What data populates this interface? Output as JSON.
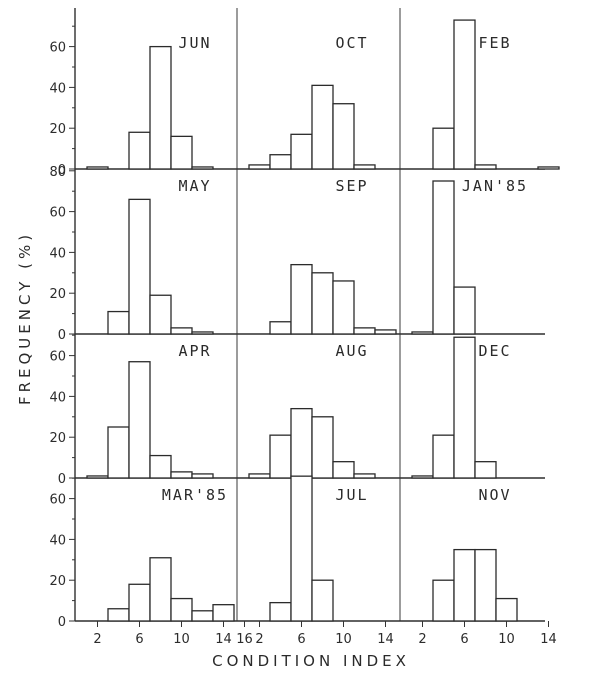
{
  "chart_data": {
    "type": "bar",
    "xlabel": "CONDITION INDEX",
    "ylabel": "FREQUENCY (%)",
    "ylim": [
      0,
      90
    ],
    "y_ticks": [
      0,
      20,
      40,
      60,
      80
    ],
    "grid": false,
    "panels": [
      {
        "label": "JUN",
        "x_tick_labels": [],
        "bins": [
          2,
          4,
          6,
          8,
          10,
          12,
          14,
          16
        ],
        "values": [
          1,
          0,
          18,
          60,
          16,
          1,
          0,
          0
        ]
      },
      {
        "label": "OCT",
        "x_tick_labels": [],
        "bins": [
          2,
          4,
          6,
          8,
          10,
          12,
          14,
          16
        ],
        "values": [
          2,
          7,
          17,
          41,
          32,
          2,
          0,
          0
        ]
      },
      {
        "label": "FEB",
        "x_tick_labels": [],
        "bins": [
          2,
          4,
          6,
          8,
          10,
          12,
          14,
          16
        ],
        "values": [
          0,
          20,
          73,
          2,
          0,
          0,
          1,
          0
        ]
      },
      {
        "label": "MAY",
        "x_tick_labels": [],
        "bins": [
          2,
          4,
          6,
          8,
          10,
          12,
          14,
          16
        ],
        "values": [
          0,
          11,
          66,
          19,
          3,
          1,
          0,
          0
        ]
      },
      {
        "label": "SEP",
        "x_tick_labels": [],
        "bins": [
          2,
          4,
          6,
          8,
          10,
          12,
          14,
          16
        ],
        "values": [
          0,
          6,
          34,
          30,
          26,
          3,
          2,
          0
        ]
      },
      {
        "label": "JAN'85",
        "x_tick_labels": [],
        "bins": [
          2,
          4,
          6,
          8,
          10,
          12,
          14,
          16
        ],
        "values": [
          1,
          75,
          23,
          0,
          0,
          0,
          0,
          0
        ]
      },
      {
        "label": "APR",
        "x_tick_labels": [],
        "bins": [
          2,
          4,
          6,
          8,
          10,
          12,
          14,
          16
        ],
        "values": [
          1,
          25,
          57,
          11,
          3,
          2,
          0,
          0
        ]
      },
      {
        "label": "AUG",
        "x_tick_labels": [],
        "bins": [
          2,
          4,
          6,
          8,
          10,
          12,
          14,
          16
        ],
        "values": [
          2,
          21,
          34,
          30,
          8,
          2,
          0,
          0
        ]
      },
      {
        "label": "DEC",
        "x_tick_labels": [],
        "bins": [
          2,
          4,
          6,
          8,
          10,
          12,
          14,
          16
        ],
        "values": [
          1,
          21,
          69,
          8,
          0,
          0,
          0,
          0
        ]
      },
      {
        "label": "MAR'85",
        "x_tick_labels": [
          "2",
          "6",
          "10",
          "14",
          "16"
        ],
        "bins": [
          2,
          4,
          6,
          8,
          10,
          12,
          14,
          16
        ],
        "values": [
          0,
          6,
          18,
          31,
          11,
          5,
          8,
          0
        ]
      },
      {
        "label": "JUL",
        "x_tick_labels": [
          "2",
          "6",
          "10",
          "14"
        ],
        "bins": [
          2,
          4,
          6,
          8,
          10,
          12,
          14,
          16
        ],
        "values": [
          0,
          9,
          71,
          20,
          0,
          0,
          0,
          0
        ]
      },
      {
        "label": "NOV",
        "x_tick_labels": [
          "2",
          "6",
          "10",
          "14"
        ],
        "bins": [
          2,
          4,
          6,
          8,
          10,
          12,
          14,
          16
        ],
        "values": [
          0,
          20,
          35,
          35,
          11,
          0,
          0,
          0
        ]
      }
    ]
  }
}
